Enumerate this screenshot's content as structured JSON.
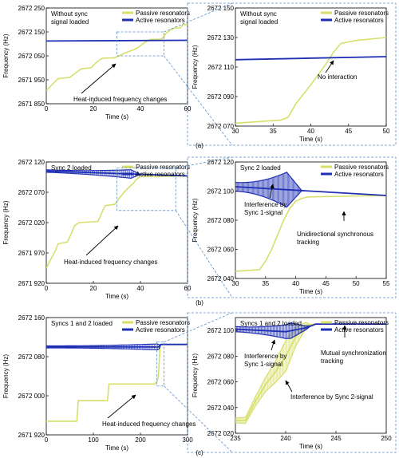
{
  "colors": {
    "passive": "#d7df6a",
    "active": "#1f2fb4",
    "connector": "#5b8fc9"
  },
  "legend": {
    "passive": "Passive resonators",
    "active": "Active resonators"
  },
  "panel_labels": [
    "(a)",
    "(b)",
    "(c)"
  ],
  "chart_data": [
    {
      "id": "a_left",
      "type": "line",
      "title": "Without sync signal loaded",
      "title_lines": [
        "Without sync",
        "signal loaded"
      ],
      "xlabel": "Time (s)",
      "ylabel": "Frequency (Hz)",
      "xlim": [
        0,
        60
      ],
      "ylim": [
        2671850,
        2672250
      ],
      "xticks": [
        0,
        20,
        40,
        60
      ],
      "yticks": [
        2671850,
        2671950,
        2672050,
        2672150,
        2672250
      ],
      "ytick_labels": [
        "2671 850",
        "2671 950",
        "2672 050",
        "2672 150",
        "2672 250"
      ],
      "series": [
        {
          "name": "Passive resonators",
          "style": "passive",
          "x": [
            0,
            2,
            4,
            5,
            10,
            12,
            14,
            15,
            19,
            21,
            23,
            24,
            29,
            31,
            33,
            35,
            37,
            39,
            41,
            43,
            44,
            49,
            51,
            53,
            54,
            57,
            58,
            60
          ],
          "y": [
            2671905,
            2671925,
            2671945,
            2671955,
            2671960,
            2671975,
            2671990,
            2671996,
            2672000,
            2672020,
            2672036,
            2672040,
            2672042,
            2672050,
            2672060,
            2672068,
            2672075,
            2672085,
            2672100,
            2672113,
            2672118,
            2672120,
            2672145,
            2672160,
            2672165,
            2672168,
            2672180,
            2672182
          ]
        },
        {
          "name": "Active resonators",
          "style": "active",
          "x": [
            0,
            60
          ],
          "y": [
            2672112,
            2672115
          ]
        }
      ],
      "annotations": [
        {
          "text": "Heat-induced frequency changes"
        }
      ]
    },
    {
      "id": "a_right",
      "type": "line",
      "title": "Without sync signal loaded",
      "title_lines": [
        "Without sync",
        "signal loaded"
      ],
      "xlabel": "Time (s)",
      "ylabel": "Frequency (Hz)",
      "xlim": [
        30,
        50
      ],
      "ylim": [
        2672070,
        2672150
      ],
      "xticks": [
        30,
        35,
        40,
        45,
        50
      ],
      "yticks": [
        2672070,
        2672090,
        2672110,
        2672130,
        2672150
      ],
      "ytick_labels": [
        "2672 070",
        "2672 090",
        "2672 110",
        "2672 130",
        "2672 150"
      ],
      "series": [
        {
          "name": "Passive resonators",
          "style": "passive",
          "x": [
            30,
            33,
            36,
            37,
            38,
            40,
            42,
            43,
            44,
            46,
            50
          ],
          "y": [
            2672072,
            2672073,
            2672074,
            2672076,
            2672085,
            2672098,
            2672112,
            2672120,
            2672126,
            2672128,
            2672130
          ]
        },
        {
          "name": "Active resonators",
          "style": "active",
          "x": [
            30,
            50
          ],
          "y": [
            2672115,
            2672117
          ]
        }
      ],
      "annotations": [
        {
          "text": "No interaction"
        }
      ]
    },
    {
      "id": "b_left",
      "type": "line",
      "title": "Sync 2 loaded",
      "xlabel": "Time (s)",
      "ylabel": "Frequency (Hz)",
      "xlim": [
        0,
        60
      ],
      "ylim": [
        2671920,
        2672120
      ],
      "xticks": [
        0,
        20,
        40,
        60
      ],
      "yticks": [
        2671920,
        2671970,
        2672020,
        2672070,
        2672120
      ],
      "ytick_labels": [
        "2671 920",
        "2671 970",
        "2672 020",
        "2672 070",
        "2672 120"
      ],
      "series": [
        {
          "name": "Passive resonators",
          "style": "passive",
          "x": [
            0,
            2,
            4,
            5,
            9,
            11,
            12,
            14,
            22,
            24,
            25,
            29,
            31,
            33,
            35,
            37,
            38,
            39,
            40,
            60
          ],
          "y": [
            2671945,
            2671960,
            2671975,
            2671985,
            2671988,
            2672005,
            2672015,
            2672020,
            2672022,
            2672040,
            2672048,
            2672050,
            2672060,
            2672070,
            2672078,
            2672085,
            2672090,
            2672094,
            2672096,
            2672097
          ]
        },
        {
          "name": "Active resonators",
          "style": "active",
          "x": [
            0,
            60
          ],
          "y": [
            2672105,
            2672097
          ],
          "band": {
            "until": 40,
            "start_halfwidth": 2,
            "max_halfwidth": 7,
            "peak_at": 36
          }
        }
      ],
      "annotations": [
        {
          "text": "Heat-induced frequency changes"
        }
      ]
    },
    {
      "id": "b_right",
      "type": "line",
      "title": "Sync 2 loaded",
      "xlabel": "Time (s)",
      "ylabel": "Frequency (Hz)",
      "xlim": [
        30,
        55
      ],
      "ylim": [
        2672040,
        2672120
      ],
      "xticks": [
        30,
        35,
        40,
        45,
        50,
        55
      ],
      "yticks": [
        2672040,
        2672060,
        2672080,
        2672100,
        2672120
      ],
      "ytick_labels": [
        "2672 040",
        "2672 060",
        "2672 080",
        "2672 100",
        "2672 120"
      ],
      "series": [
        {
          "name": "Passive resonators",
          "style": "passive",
          "x": [
            30,
            34,
            35,
            36,
            37,
            38,
            39,
            40,
            41,
            42,
            55
          ],
          "y": [
            2672045,
            2672046,
            2672052,
            2672060,
            2672070,
            2672080,
            2672088,
            2672093,
            2672095,
            2672096,
            2672097
          ]
        },
        {
          "name": "Active resonators",
          "style": "active",
          "x": [
            30,
            55
          ],
          "y": [
            2672103,
            2672097
          ],
          "band": {
            "until": 41,
            "start_halfwidth": 3,
            "max_halfwidth": 12,
            "peak_at": 38.5
          }
        }
      ],
      "annotations": [
        {
          "text": "Interference by Sync 1-signal",
          "lines": [
            "Interference by",
            "Sync 1-signal"
          ]
        },
        {
          "text": "Unidirectional synchronous tracking",
          "lines": [
            "Unidirectional synchronous",
            "tracking"
          ]
        }
      ]
    },
    {
      "id": "c_left",
      "type": "line",
      "title": "Syncs 1 and 2 loaded",
      "xlabel": "Time (s)",
      "ylabel": "Frequency (Hz)",
      "xlim": [
        0,
        300
      ],
      "ylim": [
        2671920,
        2672160
      ],
      "xticks": [
        0,
        100,
        200,
        300
      ],
      "yticks": [
        2671920,
        2672000,
        2672080,
        2672160
      ],
      "ytick_labels": [
        "2671 920",
        "2672 000",
        "2672 080",
        "2672 160"
      ],
      "series": [
        {
          "name": "Passive resonators",
          "style": "passive",
          "x": [
            0,
            65,
            68,
            130,
            133,
            230,
            236,
            238,
            240,
            241,
            242,
            243,
            300
          ],
          "y": [
            2671948,
            2671948,
            2671990,
            2671990,
            2672024,
            2672024,
            2672030,
            2672040,
            2672070,
            2672090,
            2672100,
            2672105,
            2672105
          ]
        },
        {
          "name": "Active resonators",
          "style": "active",
          "x": [
            0,
            240,
            243,
            300
          ],
          "y": [
            2672100,
            2672100,
            2672105,
            2672105
          ],
          "band": {
            "until": 243,
            "start_halfwidth": 2,
            "max_halfwidth": 6,
            "peak_at": 238
          }
        }
      ],
      "annotations": [
        {
          "text": "Heat-induced frequency changes"
        }
      ]
    },
    {
      "id": "c_right",
      "type": "line",
      "title": "Syncs 1 and 2 loaded",
      "xlabel": "Time (s)",
      "ylabel": "Frequency (Hz)",
      "xlim": [
        235,
        250
      ],
      "ylim": [
        2672020,
        2672110
      ],
      "xticks": [
        235,
        240,
        245,
        250
      ],
      "yticks": [
        2672020,
        2672040,
        2672060,
        2672080,
        2672100
      ],
      "ytick_labels": [
        "2672 020",
        "2672 040",
        "2672 060",
        "2672 080",
        "2672 100"
      ],
      "series": [
        {
          "name": "Passive resonators",
          "style": "passive",
          "x": [
            235,
            236,
            237,
            238,
            239,
            240,
            241,
            242,
            243,
            250
          ],
          "y": [
            2672030,
            2672030,
            2672045,
            2672058,
            2672068,
            2672080,
            2672095,
            2672104,
            2672105,
            2672105
          ],
          "band": {
            "until": 242.5,
            "start_halfwidth": 2,
            "max_halfwidth": 12,
            "peak_at": 240
          }
        },
        {
          "name": "Active resonators",
          "style": "active",
          "x": [
            235,
            240,
            242,
            243,
            250
          ],
          "y": [
            2672101,
            2672099,
            2672102,
            2672105,
            2672105
          ],
          "band": {
            "until": 242.5,
            "start_halfwidth": 2,
            "max_halfwidth": 6,
            "peak_at": 240.5
          }
        }
      ],
      "annotations": [
        {
          "text": "Interference by Sync 1-signal",
          "lines": [
            "Interference by",
            "Sync 1-signal"
          ]
        },
        {
          "text": "Mutual synchronization tracking",
          "lines": [
            "Mutual synchronization",
            "tracking"
          ]
        },
        {
          "text": "Interference by Sync 2-signal"
        }
      ]
    }
  ]
}
